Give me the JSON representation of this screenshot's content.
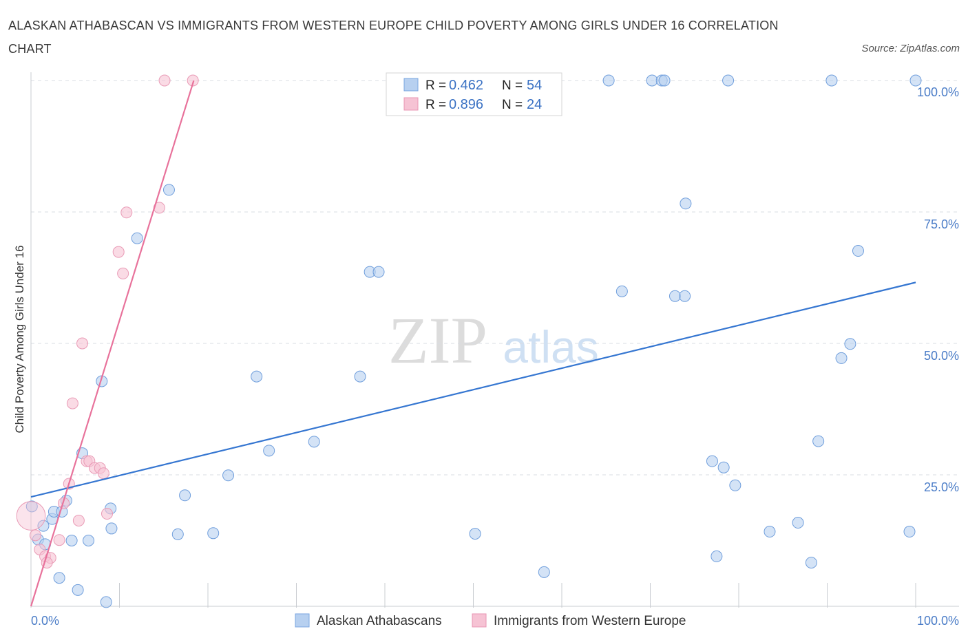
{
  "title": "ALASKAN ATHABASCAN VS IMMIGRANTS FROM WESTERN EUROPE CHILD POVERTY AMONG GIRLS UNDER 16 CORRELATION CHART",
  "source": "Source: ZipAtlas.com",
  "colors": {
    "blue": "#4a86d8",
    "blue_fill": "#b7d0f0",
    "pink": "#e8729b",
    "pink_fill": "#f6c3d4",
    "axis_text": "#4a7cc7",
    "grid": "#d9dde3"
  },
  "chart_data": {
    "type": "scatter",
    "title": "ALASKAN ATHABASCAN VS IMMIGRANTS FROM WESTERN EUROPE CHILD POVERTY AMONG GIRLS UNDER 16 CORRELATION CHART",
    "xlabel": "",
    "ylabel": "Child Poverty Among Girls Under 16",
    "xlim": [
      0,
      100
    ],
    "ylim": [
      0,
      100
    ],
    "x_tick_labels": [
      "0.0%",
      "100.0%"
    ],
    "y_tick_values": [
      25,
      50,
      75,
      100
    ],
    "y_tick_labels": [
      "25.0%",
      "50.0%",
      "75.0%",
      "100.0%"
    ],
    "watermark": {
      "zip": "ZIP",
      "atlas": "atlas"
    },
    "legend_stats": [
      {
        "r_label": "R = ",
        "r_value": "0.462",
        "n_label": "N = ",
        "n_value": "54"
      },
      {
        "r_label": "R = ",
        "r_value": "0.896",
        "n_label": "N = ",
        "n_value": "24"
      }
    ],
    "series": [
      {
        "name": "Alaskan Athabascans",
        "color": "blue",
        "trend": {
          "x0": 0,
          "y0": 20.8,
          "x1": 100,
          "y1": 61.6
        },
        "points": [
          [
            0.1,
            19.0,
            1
          ],
          [
            0.8,
            12.7,
            1
          ],
          [
            1.4,
            15.3,
            1
          ],
          [
            1.6,
            11.8,
            1
          ],
          [
            2.4,
            16.6,
            1
          ],
          [
            2.6,
            18.0,
            1
          ],
          [
            3.5,
            18.0,
            1
          ],
          [
            4.0,
            20.1,
            1
          ],
          [
            3.2,
            5.4,
            1
          ],
          [
            5.3,
            3.1,
            1
          ],
          [
            4.6,
            12.5,
            1
          ],
          [
            6.5,
            12.5,
            1
          ],
          [
            5.8,
            29.1,
            1
          ],
          [
            8.0,
            42.8,
            1
          ],
          [
            8.5,
            0.8,
            1
          ],
          [
            9.0,
            18.6,
            1
          ],
          [
            9.1,
            14.8,
            1
          ],
          [
            12.0,
            70.0,
            1
          ],
          [
            15.6,
            79.2,
            1
          ],
          [
            16.6,
            13.7,
            1
          ],
          [
            17.4,
            21.1,
            1
          ],
          [
            20.6,
            13.9,
            1
          ],
          [
            22.3,
            24.9,
            1
          ],
          [
            25.5,
            43.7,
            1
          ],
          [
            26.9,
            29.6,
            1
          ],
          [
            32.0,
            31.3,
            1
          ],
          [
            37.2,
            43.7,
            1
          ],
          [
            38.3,
            63.6,
            1
          ],
          [
            39.3,
            63.6,
            1
          ],
          [
            50.2,
            13.8,
            1
          ],
          [
            58.0,
            6.5,
            1
          ],
          [
            65.3,
            100.0,
            1
          ],
          [
            66.8,
            59.9,
            1
          ],
          [
            70.2,
            100.0,
            1
          ],
          [
            71.3,
            100.0,
            1
          ],
          [
            71.6,
            100.0,
            1
          ],
          [
            72.8,
            59.0,
            1
          ],
          [
            73.9,
            59.0,
            1
          ],
          [
            74.0,
            76.6,
            1
          ],
          [
            77.0,
            27.6,
            1
          ],
          [
            77.5,
            9.5,
            1
          ],
          [
            78.3,
            26.4,
            1
          ],
          [
            78.8,
            100.0,
            1
          ],
          [
            79.6,
            23.0,
            1
          ],
          [
            83.5,
            14.2,
            1
          ],
          [
            86.7,
            15.9,
            1
          ],
          [
            88.2,
            8.3,
            1
          ],
          [
            89.0,
            31.4,
            1
          ],
          [
            90.5,
            100.0,
            1
          ],
          [
            91.6,
            47.2,
            1
          ],
          [
            92.6,
            49.9,
            1
          ],
          [
            93.5,
            67.6,
            1
          ],
          [
            99.3,
            14.2,
            1
          ],
          [
            100.0,
            100.0,
            1
          ]
        ]
      },
      {
        "name": "Immigrants from Western Europe",
        "color": "pink",
        "trend": {
          "x0": 0,
          "y0": 0.0,
          "x1": 18.4,
          "y1": 100.0
        },
        "points": [
          [
            0.0,
            17.2,
            2.6
          ],
          [
            0.5,
            13.5,
            1
          ],
          [
            1.0,
            10.8,
            1
          ],
          [
            1.6,
            9.5,
            1
          ],
          [
            2.2,
            9.2,
            1
          ],
          [
            1.8,
            8.3,
            1
          ],
          [
            3.2,
            12.6,
            1
          ],
          [
            3.7,
            19.6,
            1
          ],
          [
            4.3,
            23.3,
            1
          ],
          [
            4.7,
            38.6,
            1
          ],
          [
            5.4,
            16.3,
            1
          ],
          [
            5.8,
            50.0,
            1
          ],
          [
            6.3,
            27.6,
            1
          ],
          [
            6.6,
            27.6,
            1
          ],
          [
            7.2,
            26.3,
            1
          ],
          [
            7.8,
            26.3,
            1
          ],
          [
            8.2,
            25.3,
            1
          ],
          [
            8.6,
            17.6,
            1
          ],
          [
            9.9,
            67.4,
            1
          ],
          [
            10.4,
            63.3,
            1
          ],
          [
            10.8,
            74.9,
            1
          ],
          [
            14.5,
            75.8,
            1
          ],
          [
            15.1,
            100.0,
            1
          ],
          [
            18.3,
            100.0,
            1
          ]
        ]
      }
    ]
  }
}
